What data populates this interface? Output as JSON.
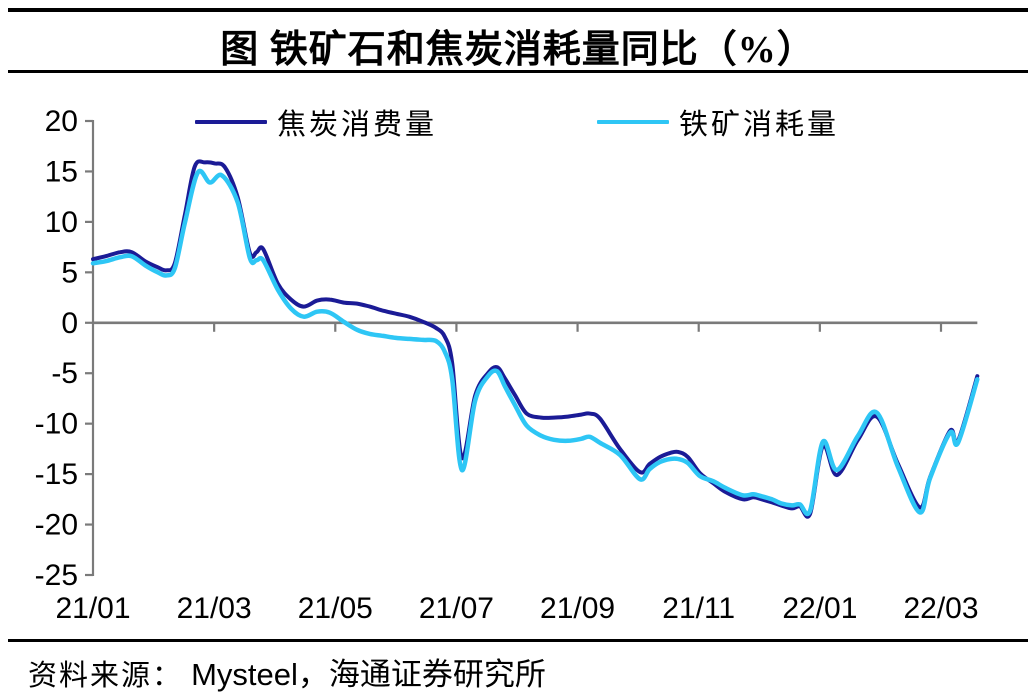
{
  "title": "图 铁矿石和焦炭消耗量同比（%）",
  "footer": {
    "prefix": "资料来源：",
    "source": "Mysteel，海通证券研究所"
  },
  "chart_data": {
    "type": "line",
    "title": "铁矿石和焦炭消耗量同比（%）",
    "x_unit": "months since 2021-01, weekly samples",
    "x_tick_labels": [
      "21/01",
      "21/03",
      "21/05",
      "21/07",
      "21/09",
      "21/11",
      "22/01",
      "22/03"
    ],
    "x_tick_months": [
      0,
      2,
      4,
      6,
      8,
      10,
      12,
      14
    ],
    "ylim": [
      -25,
      20
    ],
    "y_ticks": [
      20,
      15,
      10,
      5,
      0,
      -5,
      -10,
      -15,
      -20,
      -25
    ],
    "grid": "none",
    "legend_position": "top",
    "axis_color": "#7a7a7a",
    "zero_line_color": "#7a7a7a",
    "series": [
      {
        "name": "焦炭消费量",
        "color": "#1b1b96",
        "width": 4,
        "points": [
          [
            0.0,
            6.3
          ],
          [
            0.21,
            6.6
          ],
          [
            0.45,
            7.0
          ],
          [
            0.64,
            7.0
          ],
          [
            0.86,
            6.1
          ],
          [
            1.07,
            5.5
          ],
          [
            1.21,
            5.2
          ],
          [
            1.35,
            5.9
          ],
          [
            1.52,
            10.8
          ],
          [
            1.68,
            15.5
          ],
          [
            1.85,
            15.9
          ],
          [
            2.01,
            15.8
          ],
          [
            2.18,
            15.4
          ],
          [
            2.39,
            12.4
          ],
          [
            2.59,
            6.9
          ],
          [
            2.7,
            7.0
          ],
          [
            2.81,
            7.3
          ],
          [
            3.05,
            3.9
          ],
          [
            3.27,
            2.3
          ],
          [
            3.48,
            1.6
          ],
          [
            3.7,
            2.2
          ],
          [
            3.91,
            2.3
          ],
          [
            4.14,
            2.0
          ],
          [
            4.36,
            1.9
          ],
          [
            4.57,
            1.6
          ],
          [
            4.79,
            1.2
          ],
          [
            5.0,
            0.9
          ],
          [
            5.22,
            0.6
          ],
          [
            5.45,
            0.1
          ],
          [
            5.66,
            -0.5
          ],
          [
            5.81,
            -1.4
          ],
          [
            5.93,
            -4.0
          ],
          [
            6.09,
            -13.4
          ],
          [
            6.31,
            -7.2
          ],
          [
            6.52,
            -5.0
          ],
          [
            6.67,
            -4.4
          ],
          [
            6.8,
            -5.5
          ],
          [
            6.97,
            -7.2
          ],
          [
            7.16,
            -9.0
          ],
          [
            7.4,
            -9.4
          ],
          [
            7.61,
            -9.4
          ],
          [
            7.84,
            -9.3
          ],
          [
            8.06,
            -9.1
          ],
          [
            8.2,
            -9.0
          ],
          [
            8.37,
            -9.5
          ],
          [
            8.7,
            -12.5
          ],
          [
            9.03,
            -14.8
          ],
          [
            9.19,
            -14.0
          ],
          [
            9.36,
            -13.3
          ],
          [
            9.53,
            -12.9
          ],
          [
            9.66,
            -12.8
          ],
          [
            9.82,
            -13.3
          ],
          [
            10.02,
            -14.9
          ],
          [
            10.24,
            -15.9
          ],
          [
            10.45,
            -16.8
          ],
          [
            10.73,
            -17.5
          ],
          [
            10.9,
            -17.3
          ],
          [
            11.04,
            -17.5
          ],
          [
            11.21,
            -17.8
          ],
          [
            11.36,
            -18.1
          ],
          [
            11.54,
            -18.4
          ],
          [
            11.67,
            -18.2
          ],
          [
            11.84,
            -18.9
          ],
          [
            12.05,
            -12.2
          ],
          [
            12.28,
            -15.1
          ],
          [
            12.63,
            -11.6
          ],
          [
            12.94,
            -9.3
          ],
          [
            13.29,
            -14.0
          ],
          [
            13.65,
            -18.3
          ],
          [
            13.82,
            -15.3
          ],
          [
            14.15,
            -10.7
          ],
          [
            14.28,
            -11.7
          ],
          [
            14.6,
            -5.3
          ]
        ]
      },
      {
        "name": "铁矿消耗量",
        "color": "#2ec6f5",
        "width": 4.5,
        "points": [
          [
            0.0,
            5.9
          ],
          [
            0.21,
            6.1
          ],
          [
            0.45,
            6.5
          ],
          [
            0.64,
            6.6
          ],
          [
            0.86,
            5.7
          ],
          [
            1.07,
            5.0
          ],
          [
            1.21,
            4.7
          ],
          [
            1.35,
            5.4
          ],
          [
            1.52,
            10.0
          ],
          [
            1.73,
            14.9
          ],
          [
            1.93,
            13.9
          ],
          [
            2.13,
            14.6
          ],
          [
            2.39,
            11.9
          ],
          [
            2.59,
            6.4
          ],
          [
            2.7,
            6.2
          ],
          [
            2.81,
            6.2
          ],
          [
            3.05,
            3.3
          ],
          [
            3.27,
            1.4
          ],
          [
            3.48,
            0.6
          ],
          [
            3.7,
            1.1
          ],
          [
            3.91,
            1.0
          ],
          [
            4.14,
            0.1
          ],
          [
            4.36,
            -0.7
          ],
          [
            4.57,
            -1.1
          ],
          [
            4.79,
            -1.3
          ],
          [
            5.0,
            -1.5
          ],
          [
            5.22,
            -1.6
          ],
          [
            5.45,
            -1.7
          ],
          [
            5.66,
            -1.8
          ],
          [
            5.81,
            -2.9
          ],
          [
            5.93,
            -5.6
          ],
          [
            6.09,
            -14.6
          ],
          [
            6.31,
            -7.7
          ],
          [
            6.52,
            -5.3
          ],
          [
            6.67,
            -4.8
          ],
          [
            6.8,
            -6.3
          ],
          [
            6.97,
            -8.2
          ],
          [
            7.16,
            -10.2
          ],
          [
            7.4,
            -11.2
          ],
          [
            7.61,
            -11.6
          ],
          [
            7.84,
            -11.7
          ],
          [
            8.06,
            -11.5
          ],
          [
            8.2,
            -11.3
          ],
          [
            8.37,
            -11.9
          ],
          [
            8.7,
            -13.1
          ],
          [
            9.03,
            -15.5
          ],
          [
            9.19,
            -14.5
          ],
          [
            9.36,
            -13.8
          ],
          [
            9.53,
            -13.5
          ],
          [
            9.66,
            -13.5
          ],
          [
            9.82,
            -13.9
          ],
          [
            10.02,
            -15.2
          ],
          [
            10.24,
            -15.7
          ],
          [
            10.45,
            -16.4
          ],
          [
            10.73,
            -17.1
          ],
          [
            10.9,
            -17.0
          ],
          [
            11.04,
            -17.2
          ],
          [
            11.21,
            -17.5
          ],
          [
            11.36,
            -17.9
          ],
          [
            11.54,
            -18.1
          ],
          [
            11.67,
            -18.0
          ],
          [
            11.84,
            -18.6
          ],
          [
            12.05,
            -11.8
          ],
          [
            12.28,
            -14.6
          ],
          [
            12.63,
            -11.2
          ],
          [
            12.94,
            -8.9
          ],
          [
            13.29,
            -14.3
          ],
          [
            13.65,
            -18.8
          ],
          [
            13.82,
            -15.4
          ],
          [
            14.15,
            -10.9
          ],
          [
            14.28,
            -11.9
          ],
          [
            14.6,
            -5.6
          ]
        ]
      }
    ]
  }
}
